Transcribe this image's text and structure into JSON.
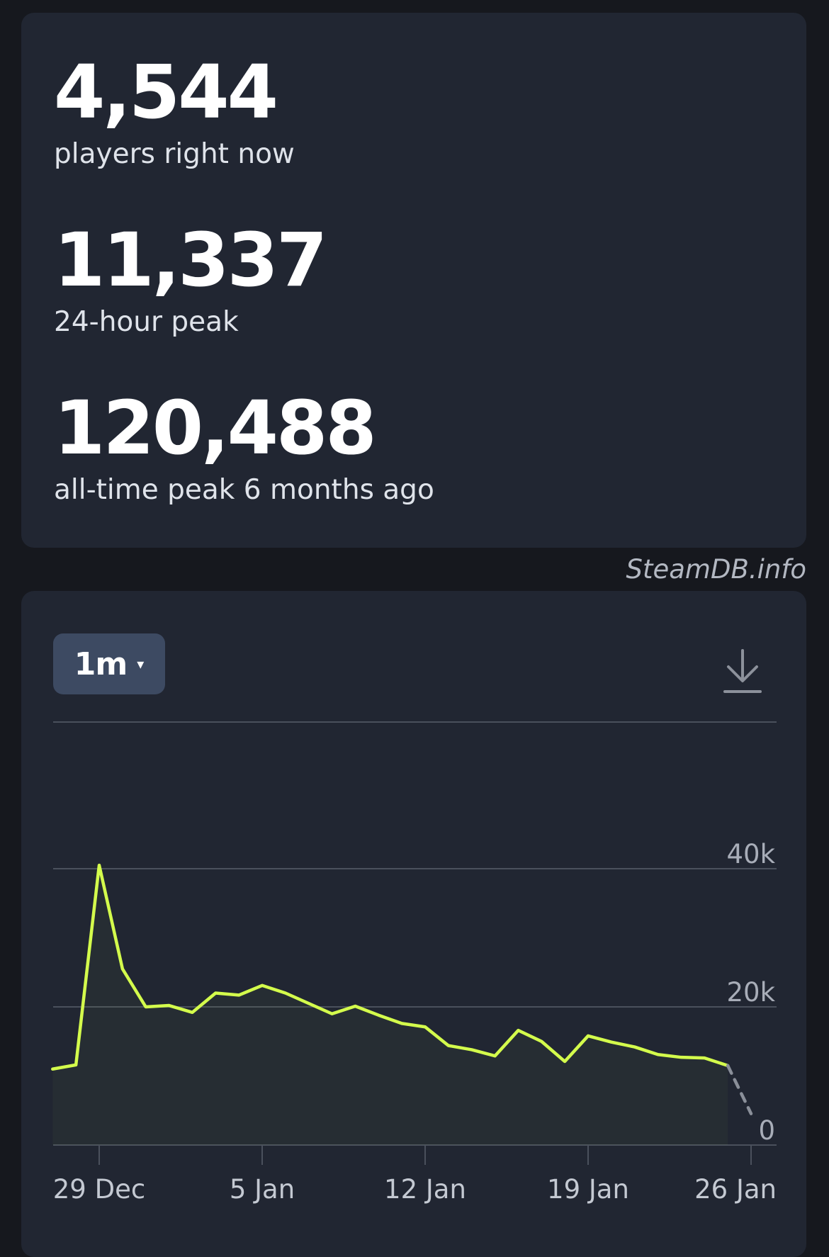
{
  "stats": [
    {
      "value": "4,544",
      "label": "players right now"
    },
    {
      "value": "11,337",
      "label": "24-hour peak"
    },
    {
      "value": "120,488",
      "label": "all-time peak 6 months ago"
    }
  ],
  "credit": "SteamDB.info",
  "controls": {
    "range_label": "1m",
    "range_caret": "▾",
    "download_icon": "download-icon"
  },
  "colors": {
    "line": "#d4fc4c",
    "projection": "#8a8f99",
    "grid": "#4a505c",
    "card": "#212632",
    "button": "#3d4a62"
  },
  "chart_data": {
    "type": "line",
    "title": "",
    "xlabel": "",
    "ylabel": "",
    "ylim": [
      0,
      60000
    ],
    "y_ticks": [
      0,
      20000,
      40000
    ],
    "y_tick_labels": [
      "0",
      "20k",
      "40k"
    ],
    "x_ticks": [
      "29 Dec",
      "5 Jan",
      "12 Jan",
      "19 Jan",
      "26 Jan"
    ],
    "grid": true,
    "series": [
      {
        "values": [
          {
            "x": "2024-12-27",
            "y": 11000
          },
          {
            "x": "2024-12-28",
            "y": 11600
          },
          {
            "x": "2024-12-29",
            "y": 40500
          },
          {
            "x": "2024-12-30",
            "y": 25500
          },
          {
            "x": "2024-12-31",
            "y": 20000
          },
          {
            "x": "2025-01-01",
            "y": 20200
          },
          {
            "x": "2025-01-02",
            "y": 19200
          },
          {
            "x": "2025-01-03",
            "y": 22000
          },
          {
            "x": "2025-01-04",
            "y": 21700
          },
          {
            "x": "2025-01-05",
            "y": 23100
          },
          {
            "x": "2025-01-06",
            "y": 22000
          },
          {
            "x": "2025-01-07",
            "y": 20500
          },
          {
            "x": "2025-01-08",
            "y": 19000
          },
          {
            "x": "2025-01-09",
            "y": 20100
          },
          {
            "x": "2025-01-10",
            "y": 18800
          },
          {
            "x": "2025-01-11",
            "y": 17600
          },
          {
            "x": "2025-01-12",
            "y": 17100
          },
          {
            "x": "2025-01-13",
            "y": 14400
          },
          {
            "x": "2025-01-14",
            "y": 13800
          },
          {
            "x": "2025-01-15",
            "y": 12900
          },
          {
            "x": "2025-01-16",
            "y": 16600
          },
          {
            "x": "2025-01-17",
            "y": 15000
          },
          {
            "x": "2025-01-18",
            "y": 12100
          },
          {
            "x": "2025-01-19",
            "y": 15800
          },
          {
            "x": "2025-01-20",
            "y": 14900
          },
          {
            "x": "2025-01-21",
            "y": 14200
          },
          {
            "x": "2025-01-22",
            "y": 13100
          },
          {
            "x": "2025-01-23",
            "y": 12700
          },
          {
            "x": "2025-01-24",
            "y": 12600
          },
          {
            "x": "2025-01-25",
            "y": 11500
          }
        ]
      }
    ],
    "projection": [
      {
        "x": "2025-01-25",
        "y": 11500
      },
      {
        "x": "2025-01-26",
        "y": 4544
      }
    ]
  }
}
